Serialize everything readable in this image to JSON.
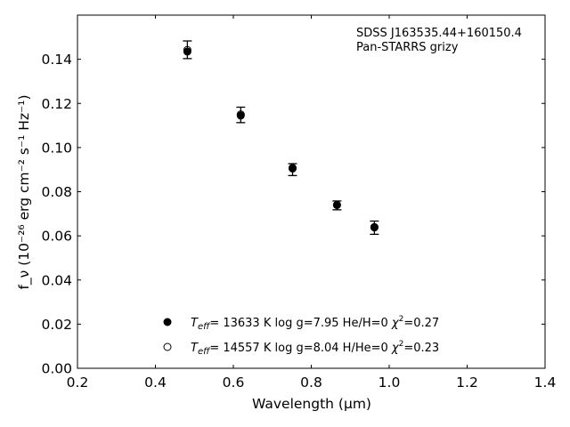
{
  "chart_data": {
    "type": "scatter",
    "xlabel": "Wavelength (μm)",
    "ylabel": "f_ν (10⁻²⁶ erg cm⁻² s⁻¹ Hz⁻¹)",
    "xlim": [
      0.2,
      1.4
    ],
    "ylim": [
      0.0,
      0.16
    ],
    "xticks": [
      "0.2",
      "0.4",
      "0.6",
      "0.8",
      "1.0",
      "1.2",
      "1.4"
    ],
    "yticks": [
      "0.00",
      "0.02",
      "0.04",
      "0.06",
      "0.08",
      "0.10",
      "0.12",
      "0.14"
    ],
    "annotation": {
      "line1": "SDSS J163535.44+160150.4",
      "line2": "Pan-STARRS grizy"
    },
    "grid": false,
    "legend_position": "bottom-center",
    "observed": {
      "x": [
        0.482,
        0.619,
        0.752,
        0.866,
        0.962
      ],
      "y": [
        0.1443,
        0.1148,
        0.09,
        0.0738,
        0.0637
      ],
      "yerr": [
        0.004,
        0.0035,
        0.0027,
        0.002,
        0.003
      ]
    },
    "series": [
      {
        "marker": "filled",
        "x": [
          0.482,
          0.619,
          0.752,
          0.866,
          0.962
        ],
        "y": [
          0.1435,
          0.1145,
          0.0905,
          0.074,
          0.0638
        ],
        "teff": "13633",
        "logg": "7.95",
        "comp": "He/H=0",
        "chi2": "0.27"
      },
      {
        "marker": "open",
        "x": [
          0.482,
          0.619,
          0.752,
          0.866,
          0.962
        ],
        "y": [
          0.1442,
          0.115,
          0.0908,
          0.074,
          0.064
        ],
        "teff": "14557",
        "logg": "8.04",
        "comp": "H/He=0",
        "chi2": "0.23"
      }
    ]
  }
}
